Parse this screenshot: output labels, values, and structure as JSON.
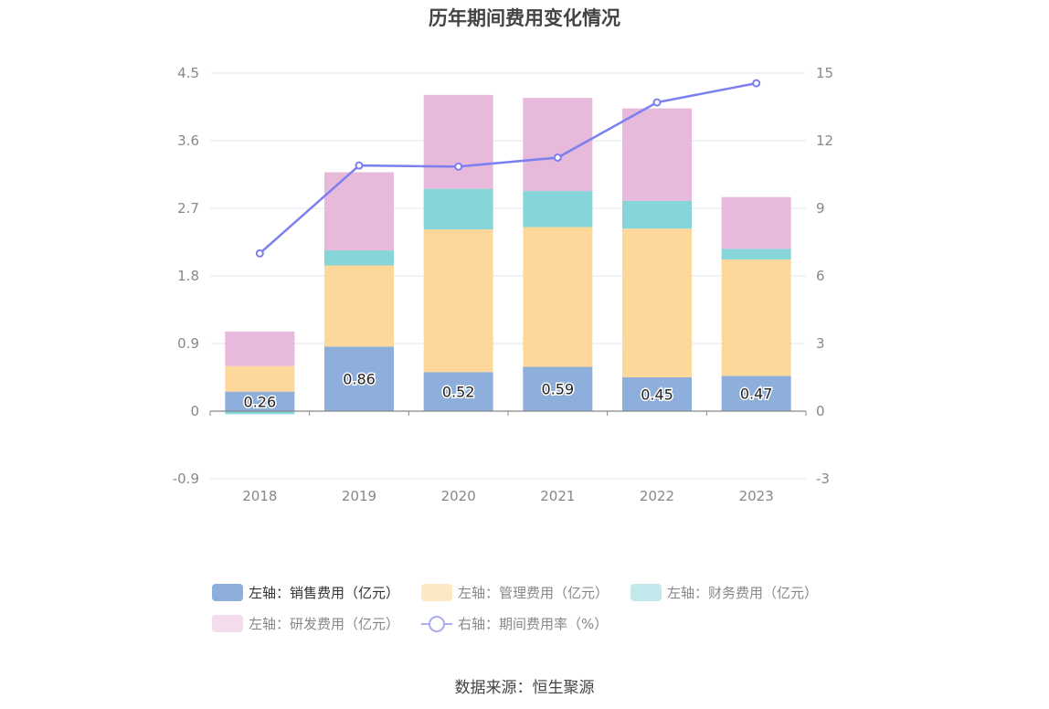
{
  "chart_data": {
    "type": "bar",
    "stacked": true,
    "title": "历年期间费用变化情况",
    "categories": [
      "2018",
      "2019",
      "2020",
      "2021",
      "2022",
      "2023"
    ],
    "y_left": {
      "min": -0.9,
      "max": 4.5,
      "ticks": [
        "-0.9",
        "0",
        "0.9",
        "1.8",
        "2.7",
        "3.6",
        "4.5"
      ]
    },
    "y_right": {
      "min": -3,
      "max": 15,
      "ticks": [
        "-3",
        "0",
        "3",
        "6",
        "9",
        "12",
        "15"
      ]
    },
    "series": [
      {
        "name": "左轴：销售费用（亿元）",
        "axis": "left",
        "type": "bar",
        "color": "#8eaedb",
        "values": [
          0.26,
          0.86,
          0.52,
          0.59,
          0.45,
          0.47
        ],
        "labels": [
          "0.26",
          "0.86",
          "0.52",
          "0.59",
          "0.45",
          "0.47"
        ]
      },
      {
        "name": "左轴：管理费用（亿元）",
        "axis": "left",
        "type": "bar",
        "color": "#fed89a",
        "values": [
          0.34,
          1.08,
          1.9,
          1.86,
          1.98,
          1.55
        ]
      },
      {
        "name": "左轴：财务费用（亿元）",
        "axis": "left",
        "type": "bar",
        "color": "#86d5d8",
        "values": [
          -0.04,
          0.2,
          0.54,
          0.48,
          0.37,
          0.14
        ]
      },
      {
        "name": "左轴：研发费用（亿元）",
        "axis": "left",
        "type": "bar",
        "color": "#e7b9da",
        "values": [
          0.46,
          1.04,
          1.25,
          1.24,
          1.23,
          0.69
        ]
      },
      {
        "name": "右轴：期间费用率（%）",
        "axis": "right",
        "type": "line",
        "color": "#7b7ff0",
        "values": [
          7.0,
          10.9,
          10.85,
          11.25,
          13.7,
          14.55
        ]
      }
    ]
  },
  "legend": {
    "items": [
      "左轴：销售费用（亿元）",
      "左轴：管理费用（亿元）",
      "左轴：财务费用（亿元）",
      "左轴：研发费用（亿元）",
      "右轴：期间费用率（%）"
    ],
    "colors": [
      "#8eaedb",
      "#fde8c4",
      "#c4e9ec",
      "#f3dcec",
      "#a9acf0"
    ]
  },
  "source": "数据来源：恒生聚源"
}
